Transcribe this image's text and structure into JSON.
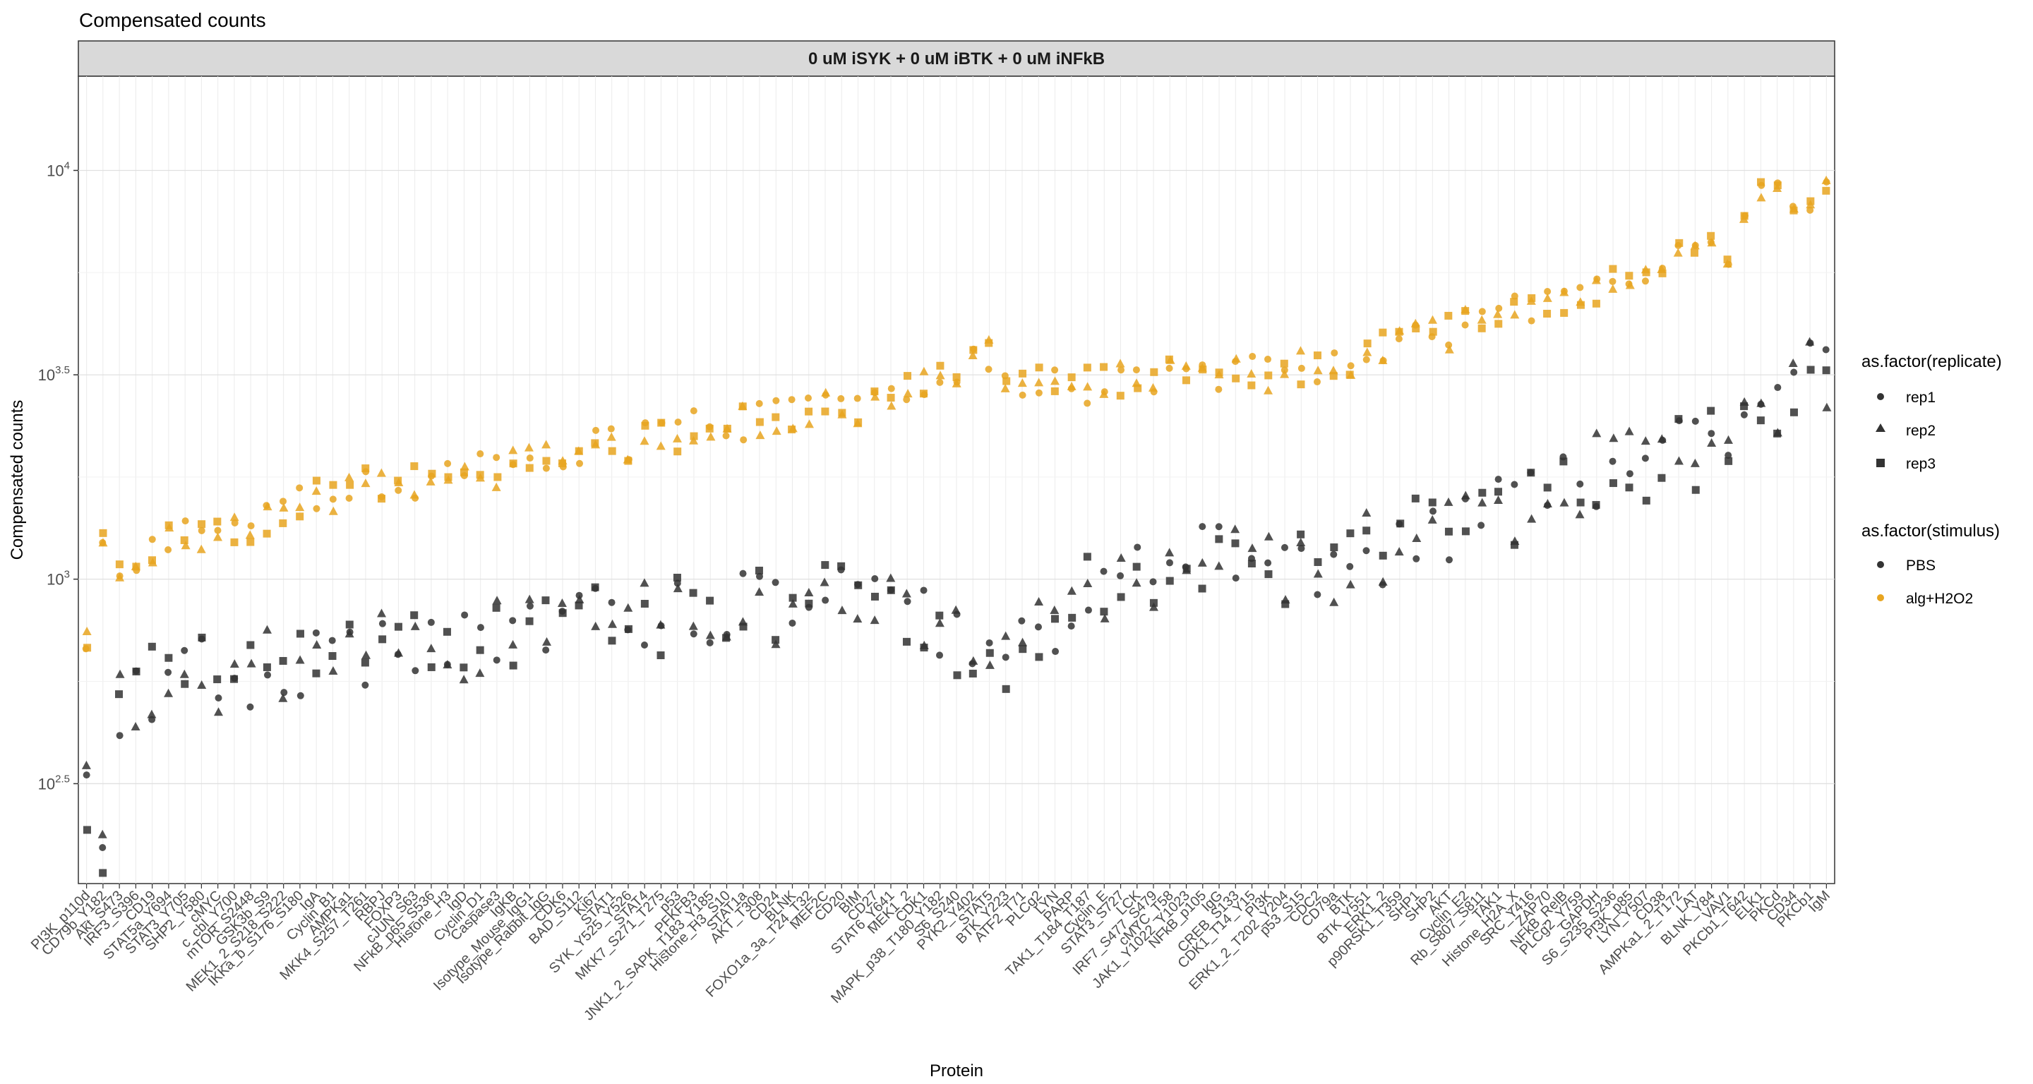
{
  "chart_data": {
    "type": "scatter",
    "title": "Compensated counts",
    "facet_label": "0 uM iSYK + 0 uM iBTK + 0 uM iNFkB",
    "xlabel": "Protein",
    "ylabel": "Compensated counts",
    "y_scale": "log10",
    "ylim": [
      180,
      17000
    ],
    "y_ticks": [
      {
        "value": 316,
        "label_base": "10",
        "label_exp": "2.5"
      },
      {
        "value": 1000,
        "label_base": "10",
        "label_exp": "3"
      },
      {
        "value": 3162,
        "label_base": "10",
        "label_exp": "3.5"
      },
      {
        "value": 10000,
        "label_base": "10",
        "label_exp": "4"
      }
    ],
    "grid": true,
    "legend_position": "right",
    "legends": {
      "shape": {
        "title": "as.factor(replicate)",
        "items": [
          "rep1",
          "rep2",
          "rep3"
        ]
      },
      "color": {
        "title": "as.factor(stimulus)",
        "items": [
          "PBS",
          "alg+H2O2"
        ]
      }
    },
    "colors": {
      "PBS": "#333333",
      "alg+H2O2": "#E8A520"
    },
    "categories": [
      "PI3K_p110d",
      "CD79b_Y182",
      "Akt_S473",
      "IRF3_S396",
      "CD19",
      "STAT5a_Y694",
      "STAT3_Y705",
      "SHP2_Y580",
      "cMYC",
      "c_cbl_Y700",
      "mTOR_S2448",
      "GSK3b_S9",
      "MEK1_2_S218_S222",
      "IKKa_b_S176_S180",
      "IgA",
      "Cyclin_B1",
      "AMPKa1",
      "MKK4_S257_T261",
      "RBPJ",
      "FOXP3",
      "cJUN_S63",
      "NFkB_p65_S536",
      "Histone_H3",
      "IgD",
      "Cyclin_D1",
      "Caspase3",
      "IgKB",
      "Isotype_Mouse_IgG1",
      "Isotype_Rabbit_IgG",
      "CDK6",
      "BAD_S112",
      "Ki67",
      "STAT1",
      "SYK_Y525_Y526",
      "STAT4",
      "MKK7_S271_T275",
      "p53",
      "PFKFB3",
      "JNK1_2_SAPK_T183_Y185",
      "Histone_H3_S10",
      "STAT1a",
      "AKT_T308",
      "CD24",
      "BLNK",
      "FOXO1a_3a_T24_T32",
      "MEF2C",
      "CD20",
      "BIM",
      "CD27",
      "STAT6_Y641",
      "MEK1_2",
      "CDK1",
      "MAPK_p38_T180_Y182",
      "S6_S240",
      "PYK2_Y402",
      "STAT5",
      "BTK_Y223",
      "ATF2_T71",
      "PLCg2",
      "LYN",
      "PARP",
      "TAK1_T184_T187",
      "Cyclin_E",
      "STAT3_S727",
      "LCK",
      "IRF7_S477_S479",
      "cMYC_T58",
      "JAK1_Y1022_Y1023",
      "NFkB_p105",
      "IgG",
      "CREB_S133",
      "CDK1_T14_Y15",
      "PI3K",
      "ERK1_2_T202_Y204",
      "p53_S15",
      "CDC2",
      "CD79a",
      "BTK",
      "BTK_Y551",
      "ERK1_2",
      "p90RSK1_T359",
      "SHP1",
      "SHP2",
      "AKT",
      "Cyclin_E2",
      "Rb_S807_S811",
      "TAK1",
      "Histone_H2A_X",
      "SRC_Y416",
      "ZAP70",
      "NFkB_RelB",
      "PLCg2_Y759",
      "GAPDH",
      "S6_S235_S236",
      "PI3K_p85",
      "LYN_Y507",
      "CD38",
      "AMPKa1_2_T172",
      "LAT",
      "BLNK_Y84",
      "VAV1",
      "PKCb1_T642",
      "ELK1",
      "PKCd",
      "CD34",
      "PKCb1",
      "IgM"
    ],
    "x_tick_labels": [
      "PI3K_p110d",
      "CD79b_Y182",
      "Akt_S473",
      "IRF3_S396",
      "CD19",
      "STAT5a_Y694",
      "STAT3_Y705",
      "SHP2_Y580",
      "cMYC",
      "c_cbl_Y700",
      "mTOR_S2448",
      "GSK3b_S9",
      "MEK1_2_S218_S222",
      "IKKa_b_S176_S180",
      "IgA",
      "Cyclin_B1",
      "AMPKa1",
      "MKK4_S257_T261",
      "RBPJ",
      "FOXP3",
      "cJUN_S63",
      "NFkB_p65_S536",
      "Histone_H3",
      "IgD",
      "Cyclin_D1",
      "Caspase3",
      "IgKB",
      "Isotype_Mouse_IgG1",
      "Isotype_Rabbit_IgG",
      "CDK6",
      "BAD_S112",
      "Ki67",
      "STAT1",
      "SYK_Y525_Y526",
      "STAT4",
      "MKK7_S271_T275",
      "p53",
      "PFKFB3",
      "JNK1_2_SAPK_T183_Y185",
      "Histone_H3_S10",
      "STAT1a",
      "AKT_T308",
      "CD24",
      "BLNK",
      "FOXO1a_3a_T24_T32",
      "MEF2C",
      "CD20",
      "BIM",
      "CD27",
      "STAT6_Y641",
      "MEK1_2",
      "CDK1",
      "MAPK_p38_T180_Y182",
      "S6_S240",
      "PYK2_Y402",
      "STAT5",
      "BTK_Y223",
      "ATF2_T71",
      "PLCg2",
      "LYN",
      "PARP",
      "TAK1_T184_T187",
      "Cyclin_E",
      "STAT3_S727",
      "LCK",
      "IRF7_S477_S479",
      "cMYC_T58",
      "JAK1_Y1022_Y1023",
      "NFkB_p105",
      "IgG",
      "CREB_S133",
      "CDK1_T14_Y15",
      "PI3K",
      "ERK1_2_T202_Y204",
      "p53_S15",
      "CDC2",
      "CD79a",
      "BTK",
      "BTK_Y551",
      "ERK1_2",
      "p90RSK1_T359",
      "SHP1",
      "SHP2",
      "AKT",
      "Cyclin_E2",
      "Rb_S807_S811",
      "TAK1",
      "Histone_H2A_X",
      "SRC_Y416",
      "ZAP70",
      "NFkB_RelB",
      "PLCg2_Y759",
      "GAPDH",
      "S6_S235_S236",
      "PI3K_p85",
      "LYN_Y507",
      "CD38",
      "AMPKa1_2_T172",
      "LAT",
      "BLNK_Y84",
      "VAV1",
      "PKCb1_T642",
      "ELK1",
      "PKCd",
      "CD34",
      "PKCb1",
      "IgM"
    ],
    "pbs_anchor_values": [
      [
        0,
        300
      ],
      [
        1,
        230
      ],
      [
        2,
        520
      ],
      [
        4,
        570
      ],
      [
        9,
        600
      ],
      [
        16,
        660
      ],
      [
        24,
        720
      ],
      [
        32,
        790
      ],
      [
        40,
        870
      ],
      [
        48,
        940
      ],
      [
        56,
        600
      ],
      [
        60,
        950
      ],
      [
        66,
        1120
      ],
      [
        76,
        1100
      ],
      [
        82,
        1380
      ],
      [
        88,
        1550
      ],
      [
        92,
        1900
      ],
      [
        96,
        1950
      ],
      [
        100,
        2300
      ],
      [
        104,
        3100
      ],
      [
        108,
        3350
      ]
    ],
    "alg_anchor_values": [
      [
        0,
        720
      ],
      [
        1,
        1170
      ],
      [
        2,
        980
      ],
      [
        4,
        1230
      ],
      [
        9,
        1290
      ],
      [
        16,
        1700
      ],
      [
        24,
        1840
      ],
      [
        32,
        2150
      ],
      [
        40,
        2450
      ],
      [
        48,
        2700
      ],
      [
        55,
        3550
      ],
      [
        56,
        2950
      ],
      [
        60,
        3000
      ],
      [
        66,
        3150
      ],
      [
        76,
        3300
      ],
      [
        80,
        3850
      ],
      [
        86,
        4300
      ],
      [
        90,
        4900
      ],
      [
        96,
        5900
      ],
      [
        100,
        6400
      ],
      [
        102,
        8500
      ],
      [
        105,
        8400
      ],
      [
        108,
        9600
      ]
    ],
    "series": [
      {
        "name": "rep1",
        "values": [
          "PBS: circle markers",
          "alg+H2O2: circle markers"
        ]
      },
      {
        "name": "rep2",
        "values": [
          "PBS: triangle markers",
          "alg+H2O2: triangle markers"
        ]
      },
      {
        "name": "rep3",
        "values": [
          "PBS: square markers",
          "alg+H2O2: square markers"
        ]
      }
    ]
  }
}
